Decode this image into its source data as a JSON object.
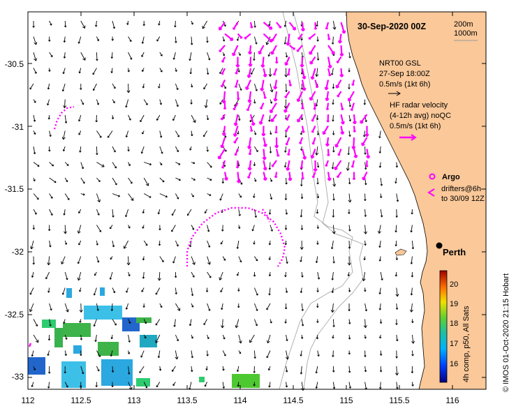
{
  "title": "30-Sep-2020 00Z",
  "depth_contours": [
    "200m",
    "1000m"
  ],
  "legend": {
    "model_name": "NRT00 GSL",
    "model_time": "27-Sep 18:00Z",
    "model_scale": "0.5m/s (1kt 6h)",
    "radar_line1": "HF radar velocity",
    "radar_line2": "(4-12h avg) noQC",
    "radar_scale": "0.5m/s (1kt 6h)",
    "argo": "Argo",
    "drifters_line1": "drifters@6h–",
    "drifters_line2": "to 30/09 12Z"
  },
  "city": "Perth",
  "colorbar": {
    "label": "4h comp, p50, All Sats",
    "ticks": [
      "20",
      "19",
      "18",
      "17",
      "16"
    ]
  },
  "credit": "©  IMOS 01-Oct-2020 21:15 Hobart",
  "x_ticks": [
    "112",
    "112.5",
    "113",
    "113.5",
    "114",
    "114.5",
    "115",
    "115.5",
    "116"
  ],
  "y_ticks": [
    "-30.5",
    "-31",
    "-31.5",
    "-32",
    "-32.5",
    "-33"
  ],
  "colors": {
    "land": "#fac899",
    "radar": "#ff00ff",
    "arrow": "#000000",
    "contour": "#aaaaaa"
  }
}
